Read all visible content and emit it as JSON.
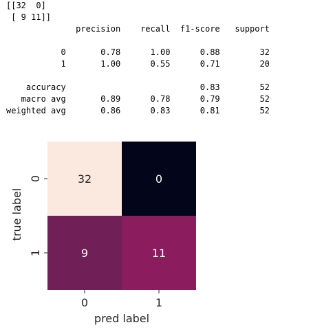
{
  "console_output": {
    "lines": [
      "[[32  0]",
      " [ 9 11]]",
      "              precision    recall  f1-score   support",
      "",
      "           0       0.78      1.00      0.88        32",
      "           1       1.00      0.55      0.71        20",
      "",
      "    accuracy                           0.83        52",
      "   macro avg       0.89      0.78      0.79        52",
      "weighted avg       0.86      0.83      0.81        52"
    ]
  },
  "chart_data": {
    "type": "heatmap",
    "xlabel": "pred label",
    "ylabel": "true label",
    "x_categories": [
      "0",
      "1"
    ],
    "y_categories": [
      "0",
      "1"
    ],
    "matrix": [
      [
        32,
        0
      ],
      [
        9,
        11
      ]
    ],
    "value_range": [
      0,
      32
    ],
    "colorbar": false,
    "annotations": true,
    "colors": {
      "cell_0_0": "#fbe8df",
      "cell_0_1": "#03051a",
      "cell_1_0": "#701f57",
      "cell_1_1": "#8b1c5e"
    },
    "annotation_colors": {
      "cell_0_0": "#262626",
      "cell_0_1": "#ffffff",
      "cell_1_0": "#ffffff",
      "cell_1_1": "#ffffff"
    }
  }
}
